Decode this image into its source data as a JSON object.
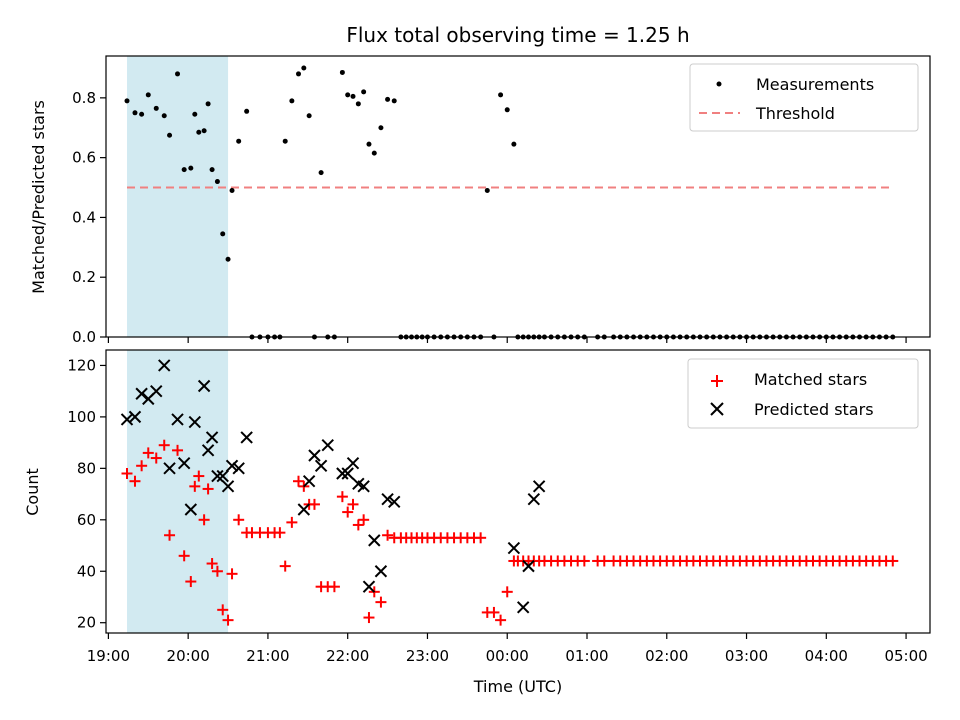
{
  "chart_data": [
    {
      "type": "scatter",
      "title": "Flux total observing time = 1.25 h",
      "ylabel": "Matched/Predicted stars",
      "xlabel": "",
      "xlim_hours": [
        18.97,
        29.3
      ],
      "ylim": [
        0,
        0.94
      ],
      "yticks": [
        0.0,
        0.2,
        0.4,
        0.6,
        0.8
      ],
      "ytick_labels": [
        "0.0",
        "0.2",
        "0.4",
        "0.6",
        "0.8"
      ],
      "highlight_span": {
        "start": "19:14",
        "end": "20:30",
        "color": "#add8e6"
      },
      "legend": {
        "position": "top-right",
        "items": [
          {
            "key": "measurements",
            "label": "Measurements"
          },
          {
            "key": "threshold",
            "label": "Threshold"
          }
        ]
      },
      "threshold": {
        "value": 0.5,
        "x_start": "19:14",
        "x_end": "04:50",
        "color": "#f08080"
      },
      "series": [
        {
          "name": "Measurements",
          "color": "#000000",
          "x": [
            "19:14",
            "19:20",
            "19:25",
            "19:30",
            "19:36",
            "19:42",
            "19:46",
            "19:52",
            "19:57",
            "20:02",
            "20:05",
            "20:08",
            "20:12",
            "20:15",
            "20:18",
            "20:22",
            "20:26",
            "20:30",
            "20:33",
            "20:38",
            "20:44",
            "20:48",
            "20:54",
            "21:00",
            "21:05",
            "21:09",
            "21:13",
            "21:18",
            "21:23",
            "21:27",
            "21:31",
            "21:35",
            "21:40",
            "21:45",
            "21:50",
            "21:56",
            "22:00",
            "22:04",
            "22:08",
            "22:12",
            "22:16",
            "22:20",
            "22:25",
            "22:30",
            "22:35",
            "22:40",
            "22:44",
            "22:48",
            "22:52",
            "22:56",
            "23:00",
            "23:05",
            "23:10",
            "23:15",
            "23:20",
            "23:25",
            "23:30",
            "23:35",
            "23:40",
            "23:45",
            "23:50",
            "23:55",
            "00:00",
            "00:05",
            "00:08",
            "00:12",
            "00:16",
            "00:20",
            "00:24",
            "00:28",
            "00:33",
            "00:38",
            "00:43",
            "00:48",
            "00:53",
            "00:58",
            "01:08",
            "01:13",
            "01:20",
            "01:25",
            "01:30",
            "01:35",
            "01:40",
            "01:45",
            "01:50",
            "01:55",
            "02:00",
            "02:05",
            "02:10",
            "02:15",
            "02:20",
            "02:25",
            "02:30",
            "02:35",
            "02:40",
            "02:45",
            "02:50",
            "02:55",
            "03:00",
            "03:05",
            "03:10",
            "03:15",
            "03:20",
            "03:25",
            "03:30",
            "03:35",
            "03:40",
            "03:45",
            "03:50",
            "03:55",
            "04:00",
            "04:05",
            "04:10",
            "04:15",
            "04:20",
            "04:25",
            "04:30",
            "04:35",
            "04:40",
            "04:45",
            "04:50"
          ],
          "y": [
            0.79,
            0.75,
            0.745,
            0.81,
            0.765,
            0.74,
            0.675,
            0.88,
            0.56,
            0.565,
            0.745,
            0.685,
            0.69,
            0.78,
            0.56,
            0.52,
            0.345,
            0.26,
            0.49,
            0.655,
            0.755,
            0.0,
            0.0,
            0.0,
            0.0,
            0.0,
            0.655,
            0.79,
            0.88,
            0.9,
            0.74,
            0.0,
            0.55,
            0.0,
            0.0,
            0.885,
            0.81,
            0.805,
            0.78,
            0.82,
            0.645,
            0.615,
            0.7,
            0.795,
            0.79,
            0.0,
            0.0,
            0.0,
            0.0,
            0.0,
            0.0,
            0.0,
            0.0,
            0.0,
            0.0,
            0.0,
            0.0,
            0.0,
            0.0,
            0.49,
            0.0,
            0.81,
            0.76,
            0.645,
            0.0,
            0.0,
            0.0,
            0.0,
            0.0,
            0.0,
            0.0,
            0.0,
            0.0,
            0.0,
            0.0,
            0.0,
            0.0,
            0.0,
            0.0,
            0.0,
            0.0,
            0.0,
            0.0,
            0.0,
            0.0,
            0.0,
            0.0,
            0.0,
            0.0,
            0.0,
            0.0,
            0.0,
            0.0,
            0.0,
            0.0,
            0.0,
            0.0,
            0.0,
            0.0,
            0.0,
            0.0,
            0.0,
            0.0,
            0.0,
            0.0,
            0.0,
            0.0,
            0.0,
            0.0,
            0.0,
            0.0,
            0.0,
            0.0,
            0.0,
            0.0,
            0.0,
            0.0,
            0.0,
            0.0,
            0.0,
            0.0
          ]
        }
      ]
    },
    {
      "type": "scatter",
      "title": "",
      "ylabel": "Count",
      "xlabel": "Time (UTC)",
      "xlim_hours": [
        18.97,
        29.3
      ],
      "ylim": [
        16,
        126
      ],
      "yticks": [
        20,
        40,
        60,
        80,
        100,
        120
      ],
      "ytick_labels": [
        "20",
        "40",
        "60",
        "80",
        "100",
        "120"
      ],
      "xticks": [
        "19:00",
        "20:00",
        "21:00",
        "22:00",
        "23:00",
        "00:00",
        "01:00",
        "02:00",
        "03:00",
        "04:00",
        "05:00"
      ],
      "highlight_span": {
        "start": "19:14",
        "end": "20:30",
        "color": "#add8e6"
      },
      "legend": {
        "position": "top-right",
        "items": [
          {
            "key": "matched",
            "label": "Matched stars"
          },
          {
            "key": "predicted",
            "label": "Predicted stars"
          }
        ]
      },
      "series": [
        {
          "name": "Matched stars",
          "color": "#ff0000",
          "marker": "plus",
          "x": [
            "19:14",
            "19:20",
            "19:25",
            "19:30",
            "19:36",
            "19:42",
            "19:46",
            "19:52",
            "19:57",
            "20:02",
            "20:05",
            "20:08",
            "20:12",
            "20:15",
            "20:18",
            "20:22",
            "20:26",
            "20:30",
            "20:33",
            "20:38",
            "20:44",
            "20:48",
            "20:54",
            "21:00",
            "21:05",
            "21:09",
            "21:13",
            "21:18",
            "21:23",
            "21:27",
            "21:31",
            "21:35",
            "21:40",
            "21:45",
            "21:50",
            "21:56",
            "22:00",
            "22:04",
            "22:08",
            "22:12",
            "22:16",
            "22:20",
            "22:25",
            "22:30",
            "22:35",
            "22:40",
            "22:44",
            "22:48",
            "22:52",
            "22:56",
            "23:00",
            "23:05",
            "23:10",
            "23:15",
            "23:20",
            "23:25",
            "23:30",
            "23:35",
            "23:40",
            "23:45",
            "23:50",
            "23:55",
            "00:00",
            "00:05",
            "00:08",
            "00:12",
            "00:16",
            "00:20",
            "00:24",
            "00:28",
            "00:33",
            "00:38",
            "00:43",
            "00:48",
            "00:53",
            "00:58",
            "01:08",
            "01:13",
            "01:20",
            "01:25",
            "01:30",
            "01:35",
            "01:40",
            "01:45",
            "01:50",
            "01:55",
            "02:00",
            "02:05",
            "02:10",
            "02:15",
            "02:20",
            "02:25",
            "02:30",
            "02:35",
            "02:40",
            "02:45",
            "02:50",
            "02:55",
            "03:00",
            "03:05",
            "03:10",
            "03:15",
            "03:20",
            "03:25",
            "03:30",
            "03:35",
            "03:40",
            "03:45",
            "03:50",
            "03:55",
            "04:00",
            "04:05",
            "04:10",
            "04:15",
            "04:20",
            "04:25",
            "04:30",
            "04:35",
            "04:40",
            "04:45",
            "04:50"
          ],
          "y": [
            78,
            75,
            81,
            86,
            84,
            89,
            54,
            87,
            46,
            36,
            73,
            77,
            60,
            72,
            43,
            40,
            25,
            21,
            39,
            60,
            55,
            55,
            55,
            55,
            55,
            55,
            42,
            59,
            75,
            73,
            66,
            66,
            34,
            34,
            34,
            69,
            63,
            66,
            58,
            60,
            22,
            32,
            28,
            54,
            53,
            53,
            53,
            53,
            53,
            53,
            53,
            53,
            53,
            53,
            53,
            53,
            53,
            53,
            53,
            24,
            24,
            21,
            32,
            44,
            44,
            44,
            44,
            44,
            44,
            44,
            44,
            44,
            44,
            44,
            44,
            44,
            44,
            44,
            44,
            44,
            44,
            44,
            44,
            44,
            44,
            44,
            44,
            44,
            44,
            44,
            44,
            44,
            44,
            44,
            44,
            44,
            44,
            44,
            44,
            44,
            44,
            44,
            44,
            44,
            44,
            44,
            44,
            44,
            44,
            44,
            44,
            44,
            44,
            44,
            44,
            44,
            44,
            44,
            44,
            44,
            44
          ]
        },
        {
          "name": "Predicted stars",
          "color": "#000000",
          "marker": "x",
          "x": [
            "19:14",
            "19:20",
            "19:25",
            "19:30",
            "19:36",
            "19:42",
            "19:46",
            "19:52",
            "19:57",
            "20:02",
            "20:05",
            "20:12",
            "20:15",
            "20:18",
            "20:22",
            "20:26",
            "20:30",
            "20:33",
            "20:38",
            "20:44",
            "21:27",
            "21:31",
            "21:35",
            "21:40",
            "21:45",
            "21:56",
            "22:00",
            "22:04",
            "22:08",
            "22:12",
            "22:16",
            "22:20",
            "22:25",
            "22:30",
            "22:35",
            "00:05",
            "00:12",
            "00:16",
            "00:20",
            "00:24"
          ],
          "y": [
            99,
            100,
            109,
            107,
            110,
            120,
            80,
            99,
            82,
            64,
            98,
            112,
            87,
            92,
            77,
            77,
            73,
            81,
            80,
            92,
            64,
            75,
            85,
            81,
            89,
            78,
            78,
            82,
            74,
            73,
            34,
            52,
            40,
            68,
            67,
            49,
            26,
            42,
            68,
            73
          ]
        }
      ]
    }
  ]
}
